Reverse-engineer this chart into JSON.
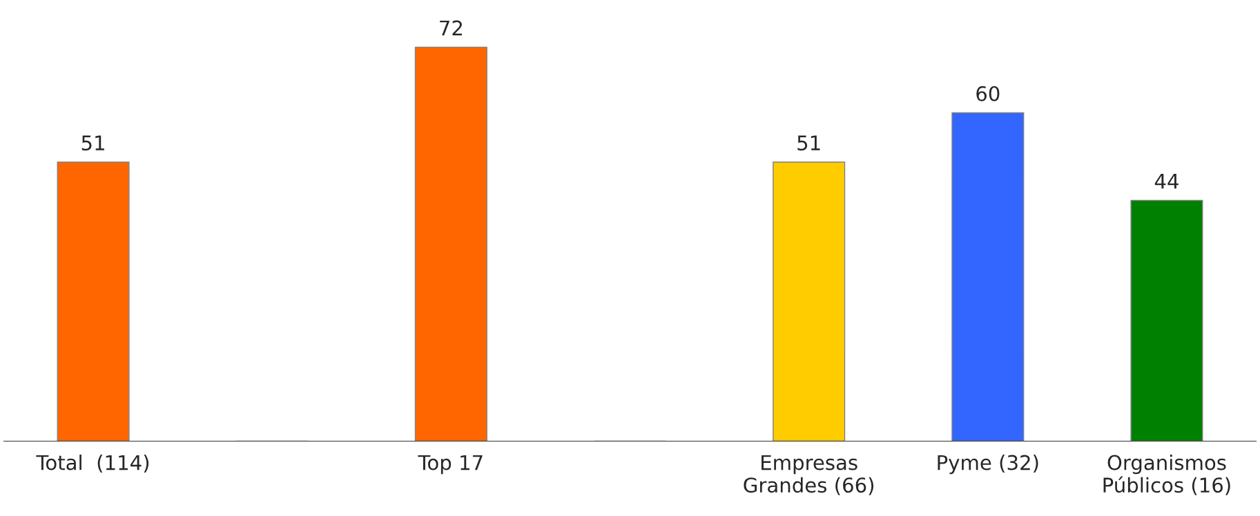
{
  "chart_data": {
    "type": "bar",
    "categories": [
      "Total  (114)",
      null,
      "Top 17",
      null,
      "Empresas\nGrandes (66)",
      "Pyme (32)",
      "Organismos\nPúblicos (16)"
    ],
    "values": [
      51,
      null,
      72,
      null,
      51,
      60,
      44
    ],
    "colors": [
      "#ff6600",
      "#ff6600",
      "#ff6600",
      "#ff6600",
      "#ffcc00",
      "#3366ff",
      "#008000"
    ],
    "data_labels": true,
    "grid": false,
    "legend": false
  }
}
